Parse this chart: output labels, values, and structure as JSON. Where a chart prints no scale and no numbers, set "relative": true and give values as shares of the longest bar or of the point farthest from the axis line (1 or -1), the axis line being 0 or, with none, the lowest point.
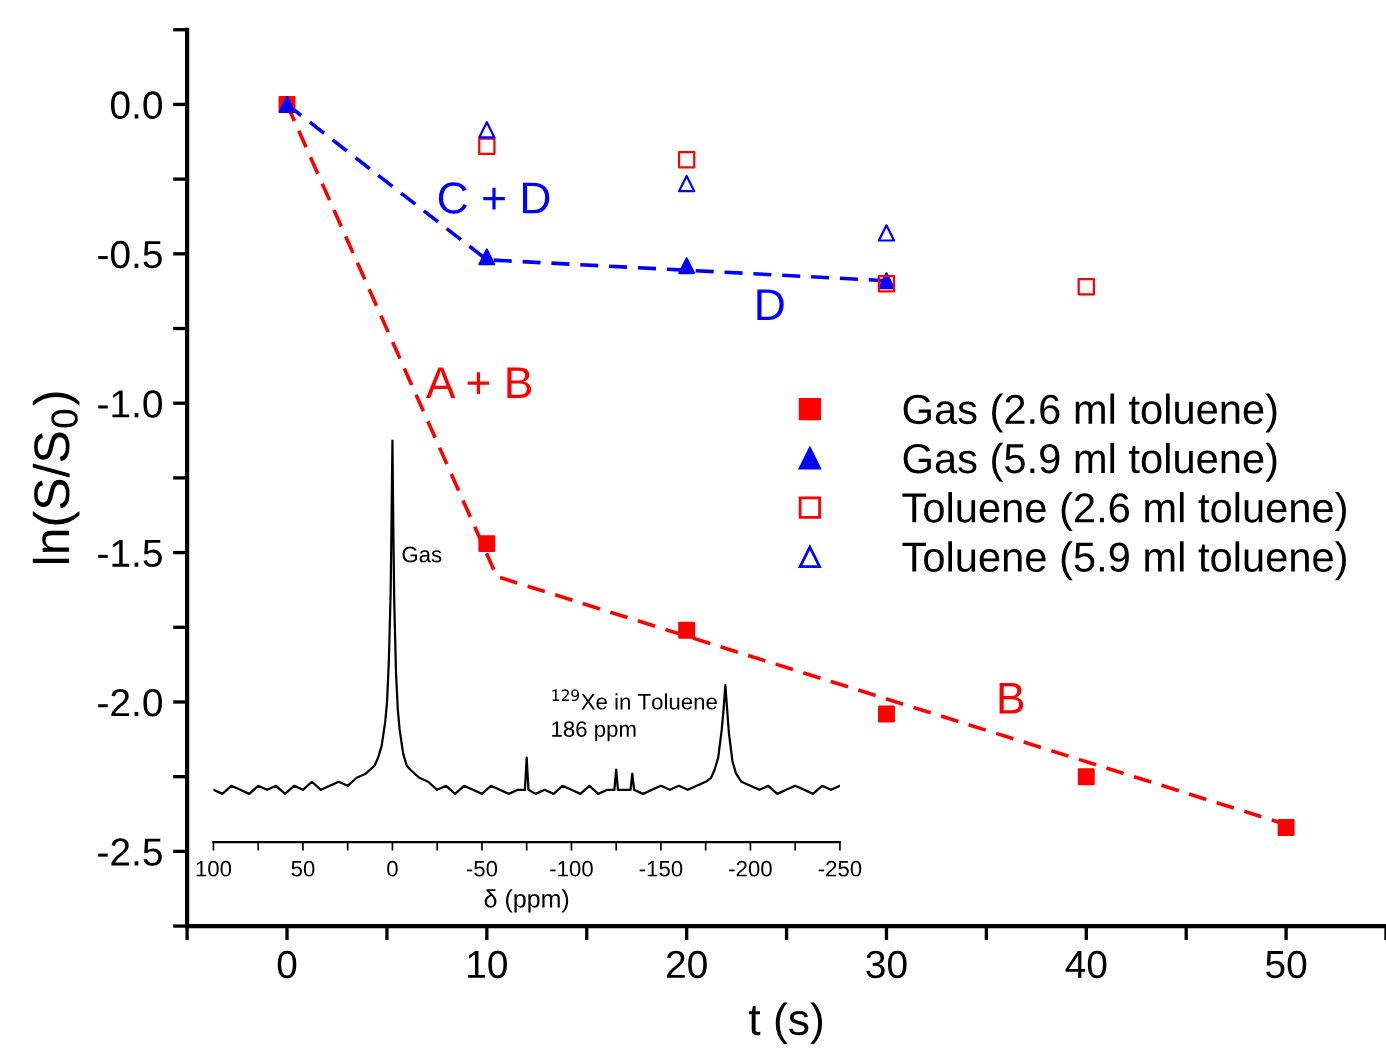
{
  "chart_data": [
    {
      "type": "scatter",
      "xlabel": "t (s)",
      "ylabel": "ln(S/S$_{0}$)",
      "xlim": [
        -5,
        55
      ],
      "ylim": [
        -2.75,
        0.25
      ],
      "xticks": [
        {
          "value": -5,
          "label": null
        },
        0,
        {
          "value": 5,
          "label": null
        },
        10,
        {
          "value": 15,
          "label": null
        },
        20,
        {
          "value": 25,
          "label": null
        },
        30,
        {
          "value": 35,
          "label": null
        },
        40,
        {
          "value": 45,
          "label": null
        },
        50,
        {
          "value": 55,
          "label": null
        }
      ],
      "yticks": [
        {
          "value": -2.75,
          "label": null
        },
        {
          "value": -2.5,
          "label": "-2.5"
        },
        {
          "value": -2.25,
          "label": null
        },
        {
          "value": -2.0,
          "label": "-2.0"
        },
        {
          "value": -1.75,
          "label": null
        },
        {
          "value": -1.5,
          "label": "-1.5"
        },
        {
          "value": -1.25,
          "label": null
        },
        {
          "value": -1.0,
          "label": "-1.0"
        },
        {
          "value": -0.75,
          "label": null
        },
        {
          "value": -0.5,
          "label": "-0.5"
        },
        {
          "value": -0.25,
          "label": null
        },
        {
          "value": 0.0,
          "label": "0.0"
        },
        {
          "value": 0.25,
          "label": null
        }
      ],
      "grid": false,
      "legend": "right",
      "series": [
        {
          "type": "line",
          "color": "#ff0000",
          "line_style": "dashed",
          "marker": "none",
          "x": [
            0,
            10.5,
            50
          ],
          "values": [
            0,
            -1.58,
            -2.41
          ]
        },
        {
          "type": "line",
          "color": "#0000ff",
          "line_style": "dashed",
          "marker": "none",
          "x": [
            0,
            10,
            30
          ],
          "values": [
            0,
            -0.52,
            -0.59
          ]
        },
        {
          "name": "Gas (2.6 ml toluene)",
          "color": "#ff0000",
          "marker": "square",
          "x": [
            0,
            10,
            20,
            30,
            40,
            50
          ],
          "values": [
            0,
            -1.47,
            -1.76,
            -2.04,
            -2.25,
            -2.42
          ]
        },
        {
          "name": "Gas (5.9 ml toluene)",
          "color": "#0000ff",
          "marker": "triangle",
          "x": [
            0,
            10,
            20,
            30
          ],
          "values": [
            0,
            -0.51,
            -0.54,
            -0.59
          ]
        },
        {
          "name": "Toluene (2.6 ml toluene)",
          "color": "#ff0000",
          "marker": "square",
          "x": [
            10,
            20,
            30,
            40
          ],
          "values": [
            -0.14,
            -0.185,
            -0.6,
            -0.61
          ]
        },
        {
          "name": "Toluene (5.9 ml toluene)",
          "color": "#0000ff",
          "marker": "triangle",
          "x": [
            10,
            20,
            30
          ],
          "values": [
            -0.085,
            -0.265,
            -0.43
          ]
        }
      ],
      "annotations": [
        "C + D",
        "D",
        "A + B",
        "B"
      ]
    },
    {
      "type": "line",
      "relative": true,
      "xlabel": "δ (ppm)",
      "xlim": [
        100,
        -250
      ],
      "xticks": [
        100,
        {
          "value": 75,
          "label": null
        },
        50,
        {
          "value": 25,
          "label": null
        },
        0,
        {
          "value": -25,
          "label": null
        },
        -50,
        {
          "value": -75,
          "label": null
        },
        -100,
        {
          "value": -125,
          "label": null
        },
        -150,
        {
          "value": -175,
          "label": null
        },
        -200,
        {
          "value": -225,
          "label": null
        },
        -250
      ],
      "tick_labels": "x",
      "grid": false,
      "legend": false,
      "series": [
        {
          "color": "#000000",
          "line_style": "solid",
          "marker": "none",
          "x": [
            100,
            95,
            90,
            85,
            80,
            75,
            70,
            65,
            60,
            55,
            50,
            45,
            40,
            35,
            30,
            25,
            20,
            15,
            10,
            8,
            6,
            4,
            3,
            2,
            1,
            0.5,
            0,
            -0.5,
            -1,
            -2,
            -3,
            -4,
            -6,
            -8,
            -10,
            -15,
            -20,
            -25,
            -30,
            -35,
            -40,
            -45,
            -50,
            -55,
            -60,
            -65,
            -70,
            -74,
            -75,
            -76,
            -80,
            -85,
            -90,
            -95,
            -100,
            -105,
            -110,
            -115,
            -120,
            -124,
            -125,
            -126,
            -130,
            -133,
            -134,
            -135,
            -140,
            -145,
            -150,
            -155,
            -160,
            -165,
            -170,
            -175,
            -178,
            -180,
            -182,
            -184,
            -185,
            -186,
            -187,
            -188,
            -190,
            -192,
            -195,
            -200,
            -205,
            -210,
            -215,
            -220,
            -225,
            -230,
            -235,
            -240,
            -245,
            -250
          ],
          "values": [
            0.13,
            0.12,
            0.14,
            0.13,
            0.12,
            0.14,
            0.13,
            0.14,
            0.12,
            0.14,
            0.13,
            0.15,
            0.13,
            0.14,
            0.15,
            0.14,
            0.16,
            0.17,
            0.19,
            0.21,
            0.24,
            0.3,
            0.35,
            0.45,
            0.62,
            0.8,
            1.0,
            0.78,
            0.6,
            0.42,
            0.33,
            0.28,
            0.22,
            0.19,
            0.18,
            0.16,
            0.15,
            0.13,
            0.14,
            0.12,
            0.14,
            0.13,
            0.12,
            0.14,
            0.13,
            0.12,
            0.13,
            0.13,
            0.21,
            0.13,
            0.12,
            0.13,
            0.12,
            0.14,
            0.13,
            0.12,
            0.14,
            0.12,
            0.13,
            0.13,
            0.18,
            0.13,
            0.13,
            0.13,
            0.17,
            0.13,
            0.12,
            0.13,
            0.14,
            0.13,
            0.14,
            0.13,
            0.14,
            0.15,
            0.16,
            0.18,
            0.21,
            0.28,
            0.33,
            0.39,
            0.33,
            0.27,
            0.2,
            0.17,
            0.15,
            0.14,
            0.13,
            0.14,
            0.12,
            0.13,
            0.14,
            0.13,
            0.12,
            0.14,
            0.13,
            0.14
          ]
        }
      ],
      "annotations": [
        {
          "text": "Gas",
          "x": -5,
          "y": 0.71
        },
        "$^{129}$Xe in Toluene\n186 ppm"
      ]
    }
  ]
}
